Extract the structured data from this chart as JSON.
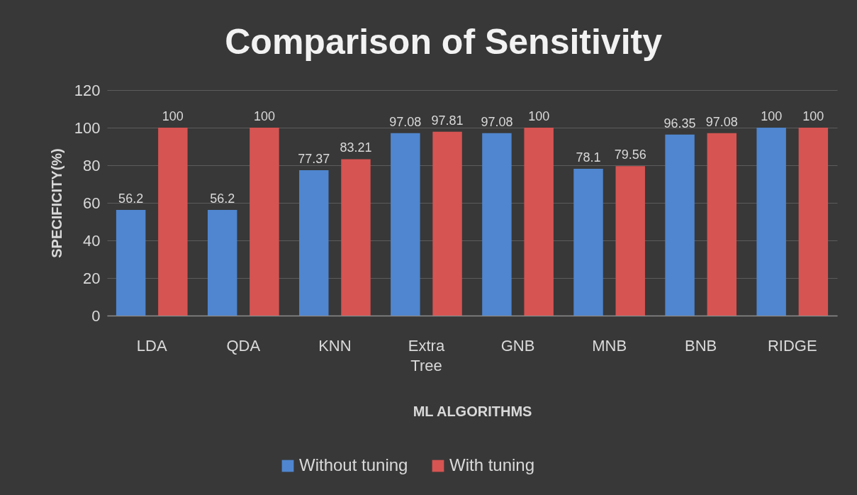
{
  "chart_data": {
    "type": "bar",
    "title": "Comparison of Sensitivity",
    "xlabel": "ML ALGORITHMS",
    "ylabel": "SPECIFICITY(%)",
    "categories": [
      "LDA",
      "QDA",
      "KNN",
      "Extra Tree",
      "GNB",
      "MNB",
      "BNB",
      "RIDGE"
    ],
    "series": [
      {
        "name": "Without tuning",
        "color": "#4f86cf",
        "values": [
          56.2,
          56.2,
          77.37,
          97.08,
          97.08,
          78.1,
          96.35,
          100
        ]
      },
      {
        "name": "With tuning",
        "color": "#d65452",
        "values": [
          100,
          100,
          83.21,
          97.81,
          100,
          79.56,
          97.08,
          100
        ]
      }
    ],
    "ylim": [
      0,
      120
    ],
    "yticks": [
      0,
      20,
      40,
      60,
      80,
      100,
      120
    ],
    "grid": "y",
    "legend": "bottom",
    "data_labels": true
  }
}
